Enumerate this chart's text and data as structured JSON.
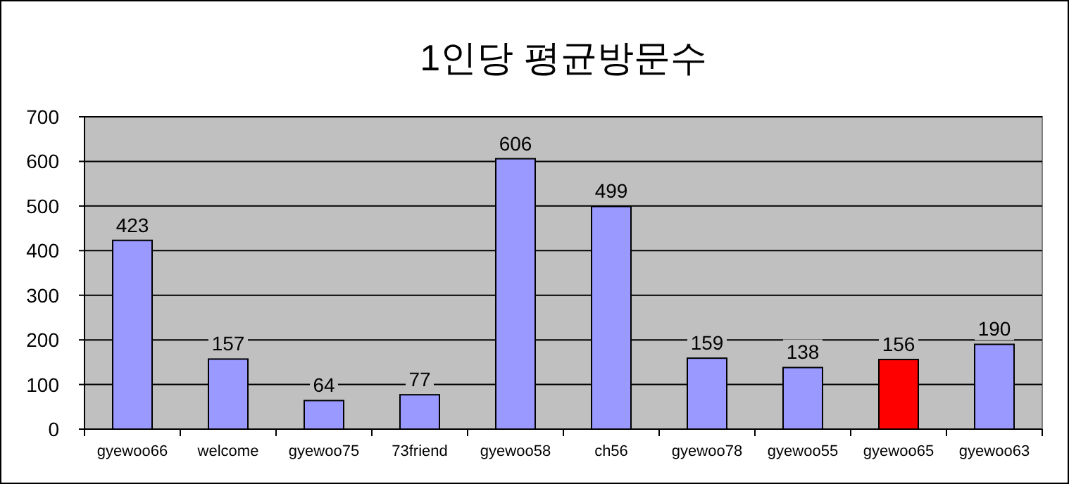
{
  "chart_data": {
    "type": "bar",
    "title": "1인당 평균방문수",
    "categories": [
      "gyewoo66",
      "welcome",
      "gyewoo75",
      "73friend",
      "gyewoo58",
      "ch56",
      "gyewoo78",
      "gyewoo55",
      "gyewoo65",
      "gyewoo63"
    ],
    "values": [
      423,
      157,
      64,
      77,
      606,
      499,
      159,
      138,
      156,
      190
    ],
    "colors": [
      "#9999ff",
      "#9999ff",
      "#9999ff",
      "#9999ff",
      "#9999ff",
      "#9999ff",
      "#9999ff",
      "#9999ff",
      "#ff0000",
      "#9999ff"
    ],
    "ylim": [
      0,
      700
    ],
    "yticks": [
      0,
      100,
      200,
      300,
      400,
      500,
      600,
      700
    ],
    "grid": "y",
    "data_labels": true
  }
}
